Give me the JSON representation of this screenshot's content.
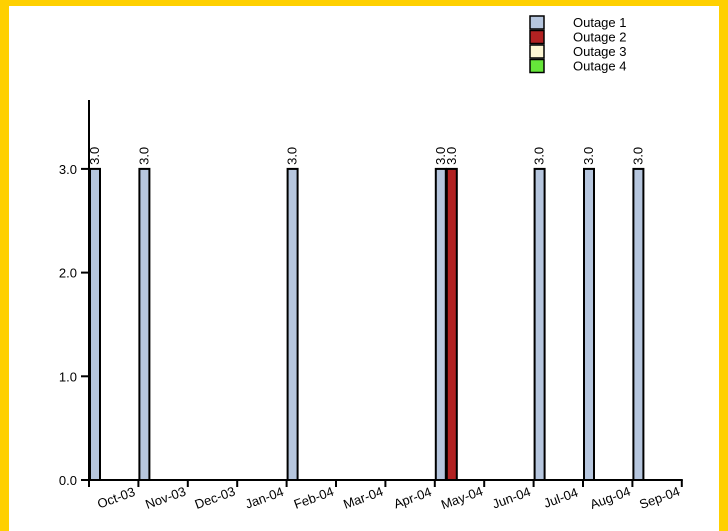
{
  "colors": {
    "frame": "#ffd000",
    "outage_1": "#b6c6de",
    "outage_2": "#b22222",
    "outage_3": "#fdf6d3",
    "outage_4": "#66e63a"
  },
  "chart_data": {
    "type": "bar",
    "categories": [
      "Oct-03",
      "Nov-03",
      "Dec-03",
      "Jan-04",
      "Feb-04",
      "Mar-04",
      "Apr-04",
      "May-04",
      "Jun-04",
      "Jul-04",
      "Aug-04",
      "Sep-04"
    ],
    "series": [
      {
        "name": "Outage 1",
        "color": "#b6c6de",
        "values": [
          3.0,
          3.0,
          null,
          null,
          3.0,
          null,
          null,
          3.0,
          null,
          3.0,
          3.0,
          3.0
        ]
      },
      {
        "name": "Outage 2",
        "color": "#b22222",
        "values": [
          null,
          null,
          null,
          null,
          null,
          null,
          null,
          3.0,
          null,
          null,
          null,
          null
        ]
      },
      {
        "name": "Outage 3",
        "color": "#fdf6d3",
        "values": [
          null,
          null,
          null,
          null,
          null,
          null,
          null,
          null,
          null,
          null,
          null,
          null
        ]
      },
      {
        "name": "Outage 4",
        "color": "#66e63a",
        "values": [
          null,
          null,
          null,
          null,
          null,
          null,
          null,
          null,
          null,
          null,
          null,
          null
        ]
      }
    ],
    "y_ticks": [
      "0.0",
      "1.0",
      "2.0",
      "3.0"
    ],
    "ylim": [
      0,
      3.6
    ],
    "legend_position": "top-right",
    "grid": false
  }
}
